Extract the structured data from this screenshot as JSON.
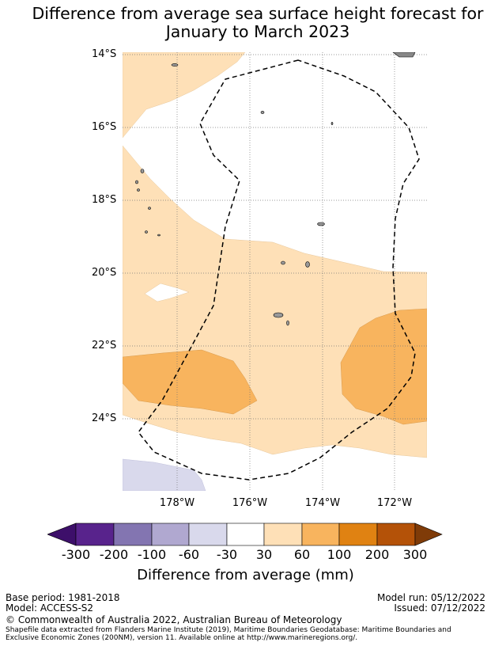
{
  "title_line1": "Difference from average sea surface height forecast for",
  "title_line2": "January to March 2023",
  "lat_labels": [
    "14°S",
    "16°S",
    "18°S",
    "20°S",
    "22°S",
    "24°S"
  ],
  "lon_labels": [
    "178°W",
    "176°W",
    "174°W",
    "172°W"
  ],
  "map_extent": {
    "lon_min": -179.5,
    "lon_max": -171.1,
    "lat_min": -25.8,
    "lat_max": -13.9
  },
  "colorbar": {
    "ticks": [
      "-300",
      "-200",
      "-100",
      "-60",
      "-30",
      "30",
      "60",
      "100",
      "200",
      "300"
    ],
    "colors": [
      "#3d0f6a",
      "#58238c",
      "#8375b1",
      "#b0a8d0",
      "#d9d9ec",
      "#ffffff",
      "#fee0b7",
      "#f8b45e",
      "#e08212",
      "#b45208",
      "#7f3b08"
    ],
    "label": "Difference from average (mm)"
  },
  "footer": {
    "base_period": "Base period: 1981-2018",
    "model": "Model: ACCESS-S2",
    "model_run": "Model run: 05/12/2022",
    "issued": "Issued: 07/12/2022",
    "copyright": "© Commonwealth of Australia 2022, Australian Bureau of Meteorology",
    "shapefile": "Shapefile data extracted from Flanders Marine Institute (2019), Maritime Boundaries Geodatabase: Maritime Boundaries and Exclusive Economic Zones (200NM), version 11. Available online at http://www.marineregions.org/."
  }
}
